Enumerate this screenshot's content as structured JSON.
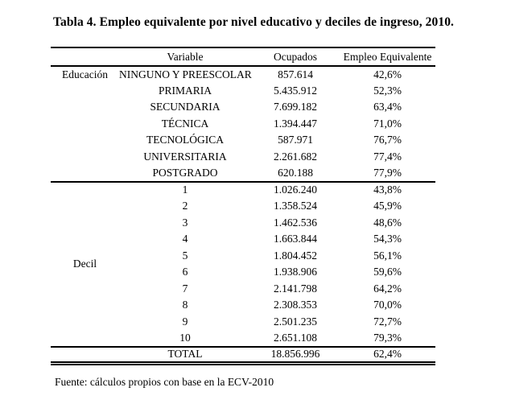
{
  "title": "Tabla 4. Empleo equivalente por nivel educativo y deciles de ingreso, 2010.",
  "table": {
    "headers": {
      "group": "",
      "variable": "Variable",
      "ocupados": "Ocupados",
      "empleo_equivalente": "Empleo Equivalente"
    },
    "groups": [
      {
        "label": "Educación",
        "rows": [
          {
            "variable": "NINGUNO Y PREESCOLAR",
            "ocupados": "857.614",
            "empleo_equivalente": "42,6%"
          },
          {
            "variable": "PRIMARIA",
            "ocupados": "5.435.912",
            "empleo_equivalente": "52,3%"
          },
          {
            "variable": "SECUNDARIA",
            "ocupados": "7.699.182",
            "empleo_equivalente": "63,4%"
          },
          {
            "variable": "TÉCNICA",
            "ocupados": "1.394.447",
            "empleo_equivalente": "71,0%"
          },
          {
            "variable": "TECNOLÓGICA",
            "ocupados": "587.971",
            "empleo_equivalente": "76,7%"
          },
          {
            "variable": "UNIVERSITARIA",
            "ocupados": "2.261.682",
            "empleo_equivalente": "77,4%"
          },
          {
            "variable": "POSTGRADO",
            "ocupados": "620.188",
            "empleo_equivalente": "77,9%"
          }
        ]
      },
      {
        "label": "Decil",
        "rows": [
          {
            "variable": "1",
            "ocupados": "1.026.240",
            "empleo_equivalente": "43,8%"
          },
          {
            "variable": "2",
            "ocupados": "1.358.524",
            "empleo_equivalente": "45,9%"
          },
          {
            "variable": "3",
            "ocupados": "1.462.536",
            "empleo_equivalente": "48,6%"
          },
          {
            "variable": "4",
            "ocupados": "1.663.844",
            "empleo_equivalente": "54,3%"
          },
          {
            "variable": "5",
            "ocupados": "1.804.452",
            "empleo_equivalente": "56,1%"
          },
          {
            "variable": "6",
            "ocupados": "1.938.906",
            "empleo_equivalente": "59,6%"
          },
          {
            "variable": "7",
            "ocupados": "2.141.798",
            "empleo_equivalente": "64,2%"
          },
          {
            "variable": "8",
            "ocupados": "2.308.353",
            "empleo_equivalente": "70,0%"
          },
          {
            "variable": "9",
            "ocupados": "2.501.235",
            "empleo_equivalente": "72,7%"
          },
          {
            "variable": "10",
            "ocupados": "2.651.108",
            "empleo_equivalente": "79,3%"
          }
        ]
      }
    ],
    "total": {
      "label": "TOTAL",
      "ocupados": "18.856.996",
      "empleo_equivalente": "62,4%"
    }
  },
  "source": "Fuente: cálculos propios con base en la ECV-2010"
}
